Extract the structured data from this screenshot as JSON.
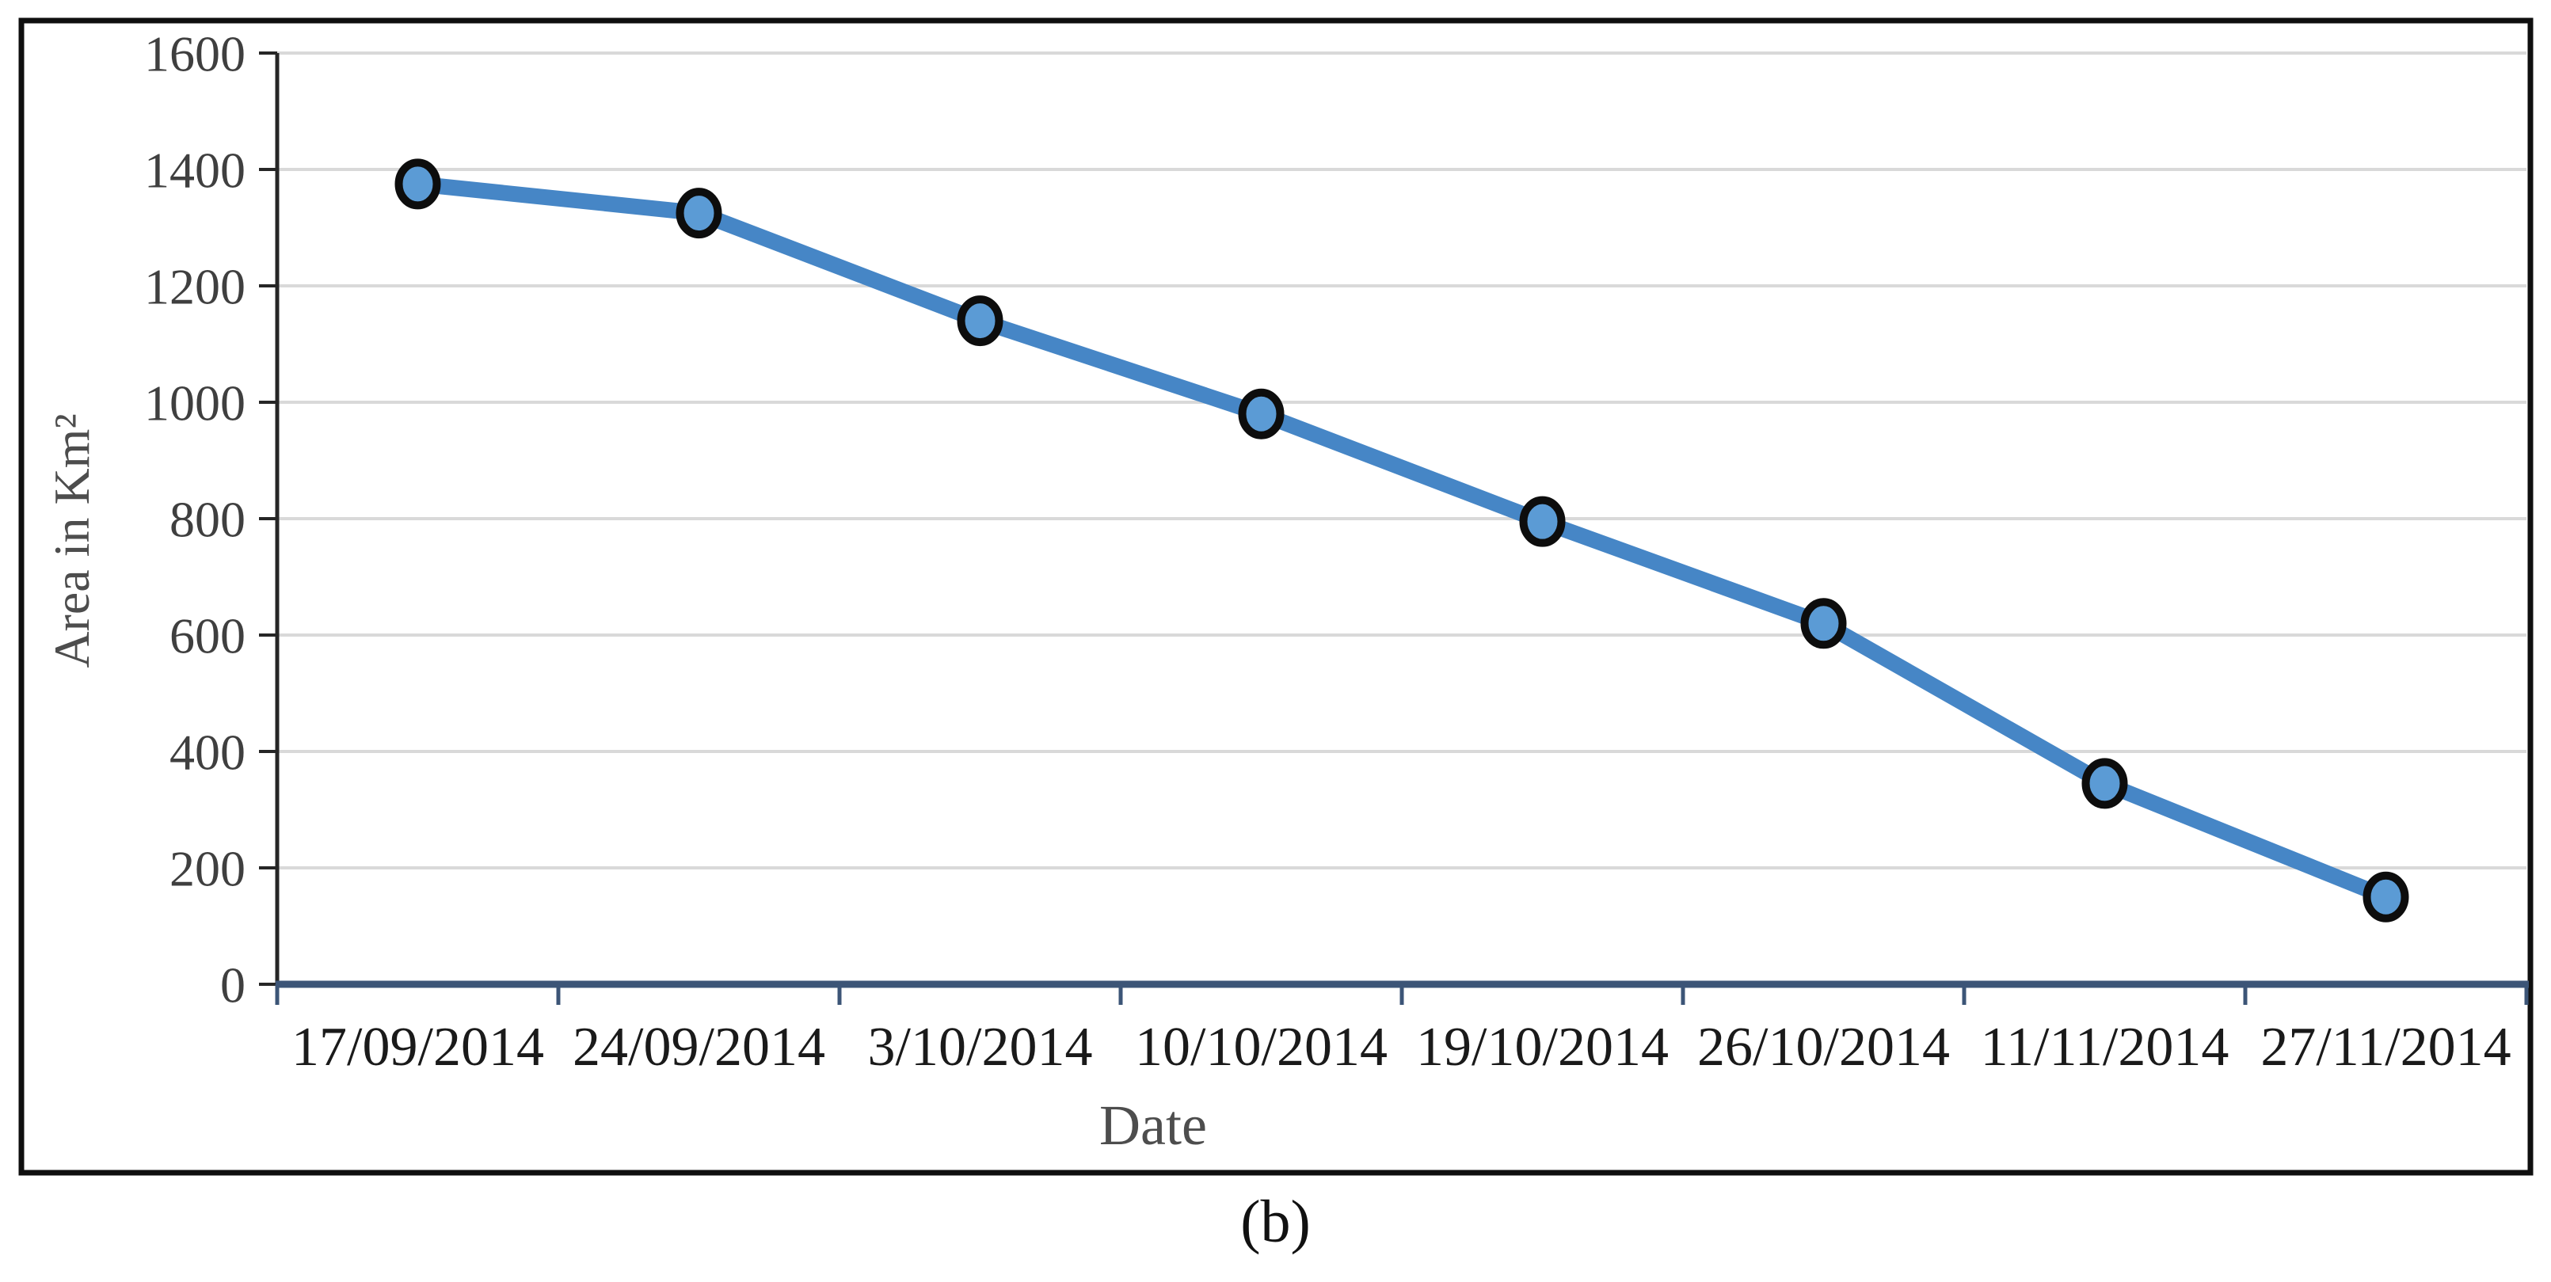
{
  "figure": {
    "caption": "(b)"
  },
  "chart_data": {
    "type": "line",
    "title": "",
    "xlabel": "Date",
    "ylabel": "Area in Km²",
    "categories": [
      "17/09/2014",
      "24/09/2014",
      "3/10/2014",
      "10/10/2014",
      "19/10/2014",
      "26/10/2014",
      "11/11/2014",
      "27/11/2014"
    ],
    "series": [
      {
        "values": [
          1375,
          1325,
          1140,
          980,
          795,
          620,
          345,
          150
        ]
      }
    ],
    "ylim": [
      0,
      1600
    ],
    "ytick_step": 200,
    "grid": true,
    "legend_position": "none",
    "marker": "circle",
    "colors": {
      "line": "#4686C6",
      "marker_fill": "#5B9BD5",
      "marker_stroke": "#0D0D0D",
      "x_axis_line": "#3C5577",
      "y_axis_line": "#262626",
      "gridline": "#D9D9D9",
      "y_tick_label": "#3F3F3F",
      "x_tick_label": "#1A1A1A",
      "axis_title": "#4D4D4D",
      "frame_border": "#0F0F0F",
      "background": "#FFFFFF"
    }
  }
}
